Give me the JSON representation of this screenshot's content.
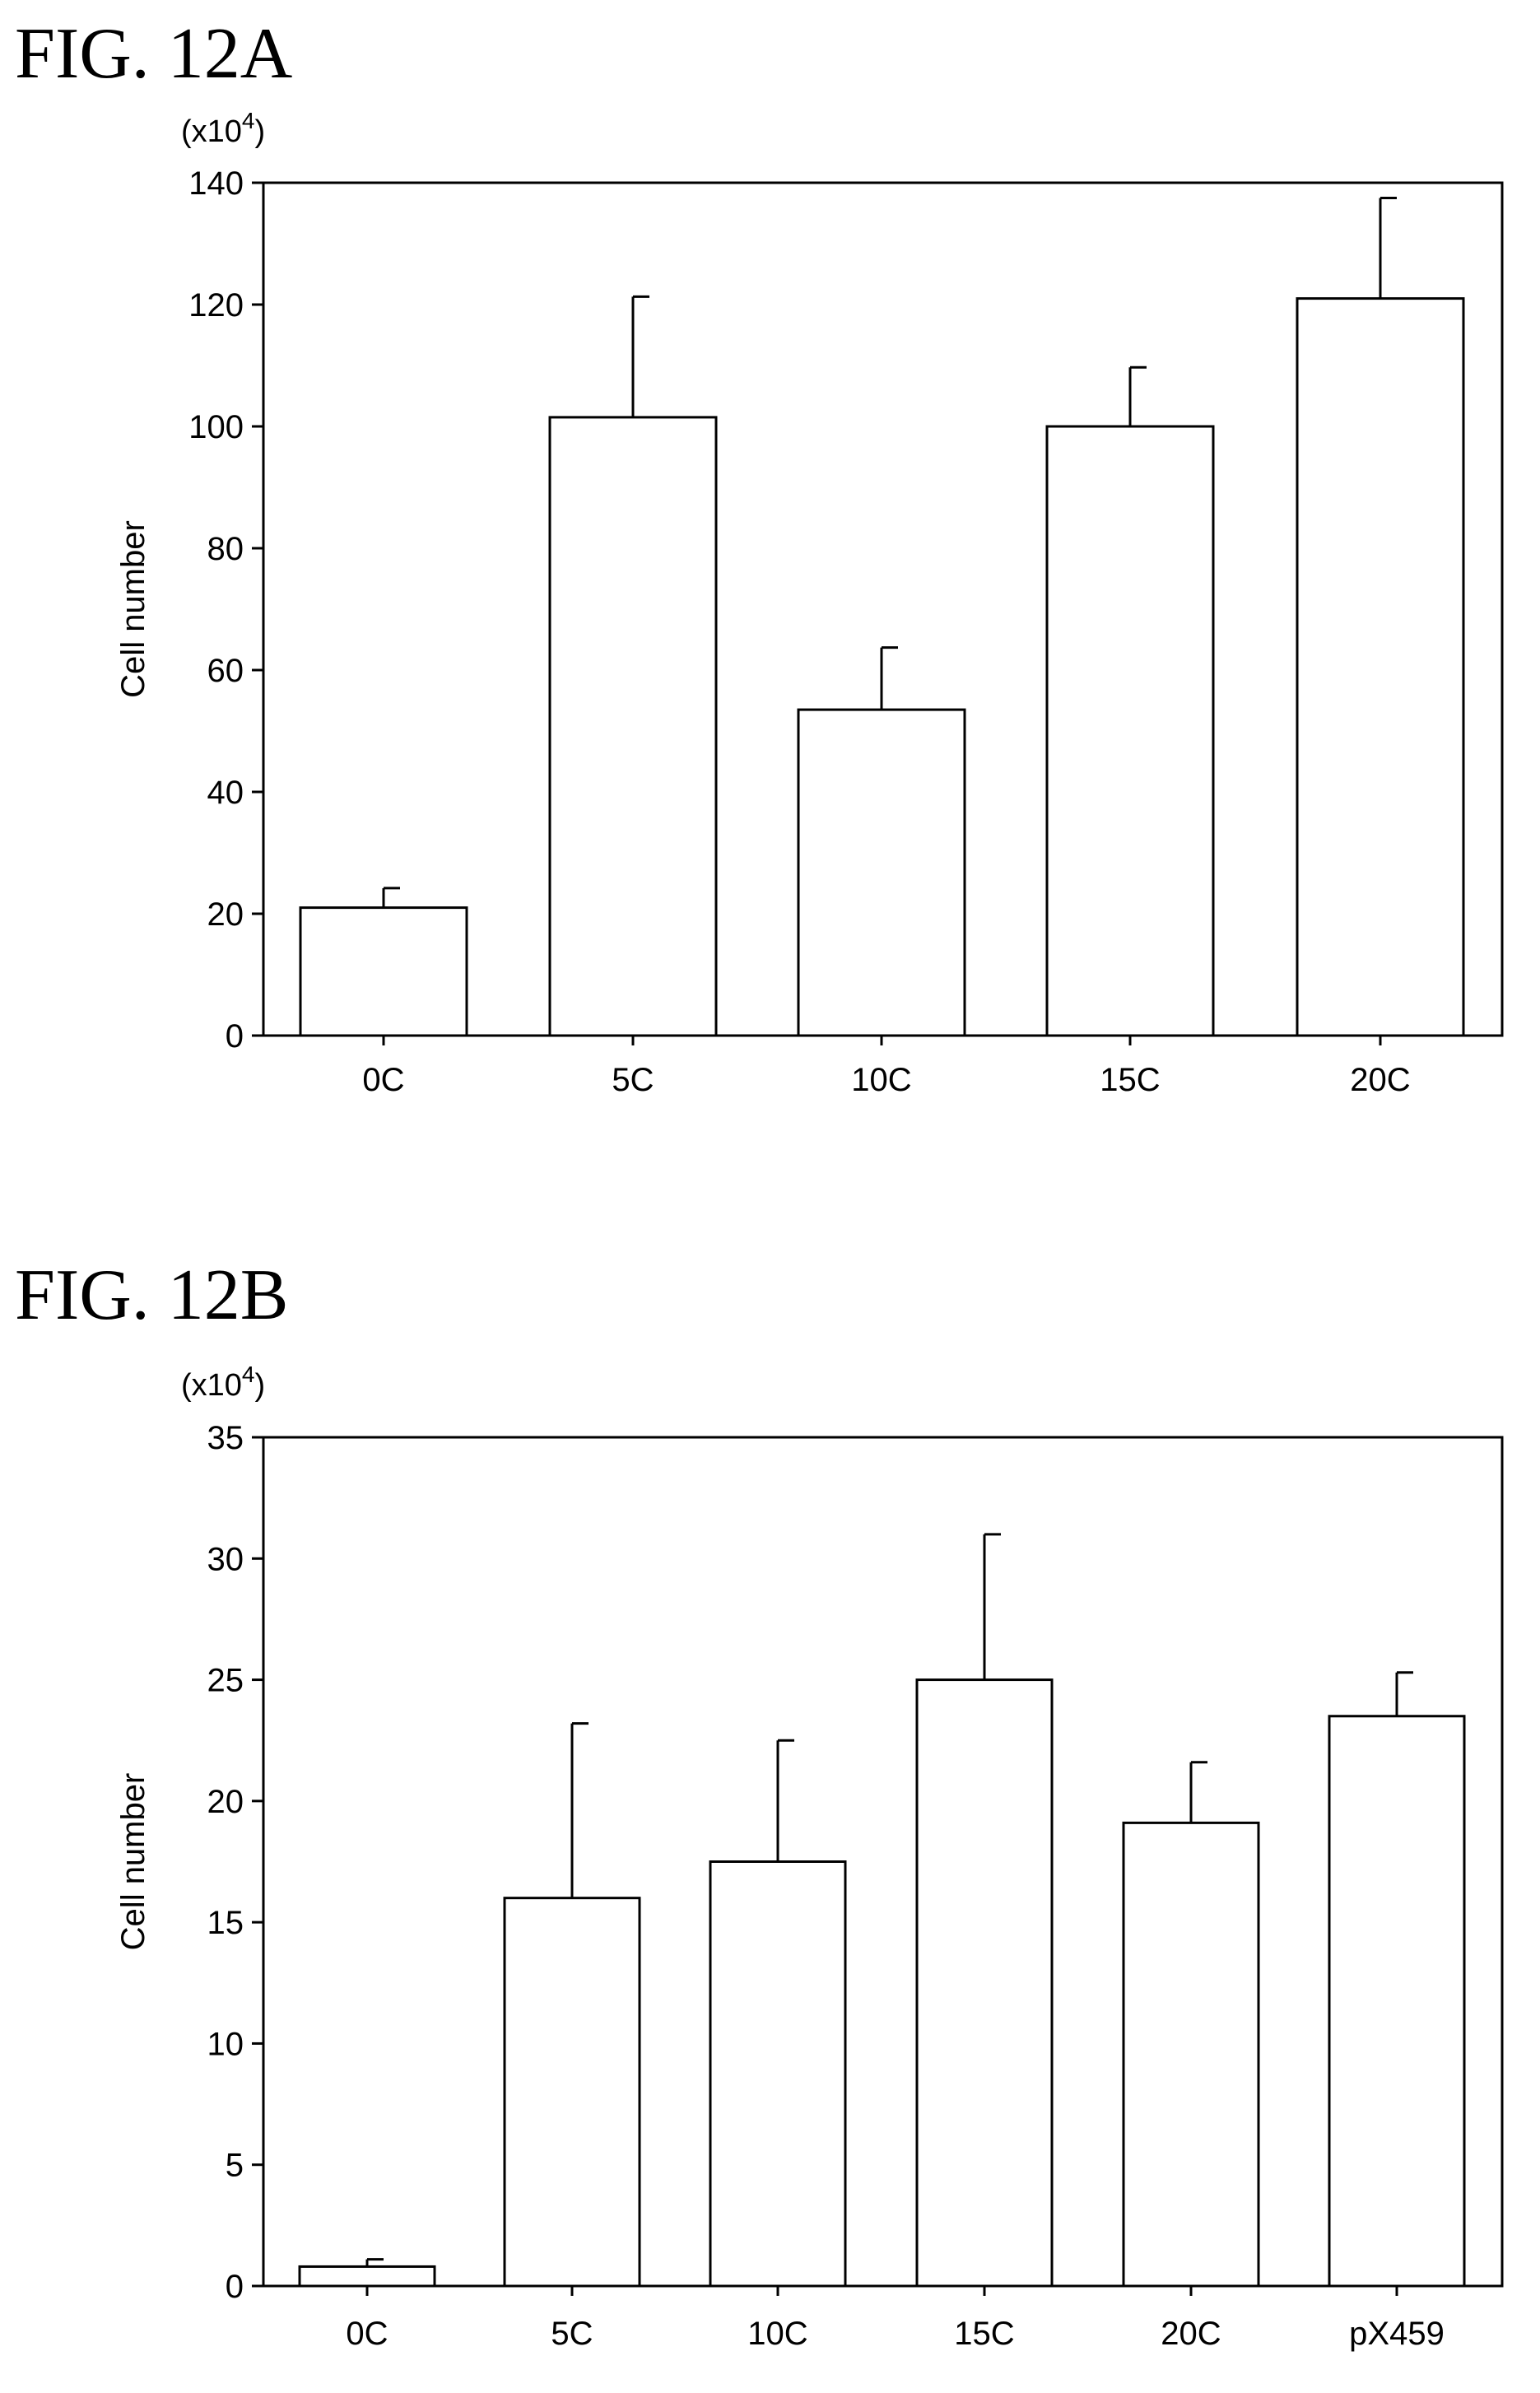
{
  "figures": [
    {
      "title": "FIG. 12A"
    },
    {
      "title": "FIG. 12B"
    }
  ],
  "chart_data": [
    {
      "type": "bar",
      "title": "FIG. 12A",
      "unit_prefix": "(x10",
      "unit_exponent": "4",
      "unit_suffix": ")",
      "ylabel": "Cell number",
      "xlabel": "",
      "ylim": [
        0,
        140
      ],
      "yticks": [
        0,
        20,
        40,
        60,
        80,
        100,
        120,
        140
      ],
      "categories": [
        "0C",
        "5C",
        "10C",
        "15C",
        "20C"
      ],
      "values": [
        21,
        101.5,
        53.5,
        100,
        121
      ],
      "errors": [
        3.2,
        19.8,
        10.2,
        9.7,
        16.5
      ],
      "grid": false,
      "legend": "none"
    },
    {
      "type": "bar",
      "title": "FIG. 12B",
      "unit_prefix": "(x10",
      "unit_exponent": "4",
      "unit_suffix": ")",
      "ylabel": "Cell number",
      "xlabel": "",
      "ylim": [
        0,
        35
      ],
      "yticks": [
        0,
        5,
        10,
        15,
        20,
        25,
        30,
        35
      ],
      "categories": [
        "0C",
        "5C",
        "10C",
        "15C",
        "20C",
        "pX459"
      ],
      "values": [
        0.8,
        16.0,
        17.5,
        25.0,
        19.1,
        23.5
      ],
      "errors": [
        0.3,
        7.2,
        5.0,
        6.0,
        2.5,
        1.8
      ],
      "grid": false,
      "legend": "none"
    }
  ]
}
